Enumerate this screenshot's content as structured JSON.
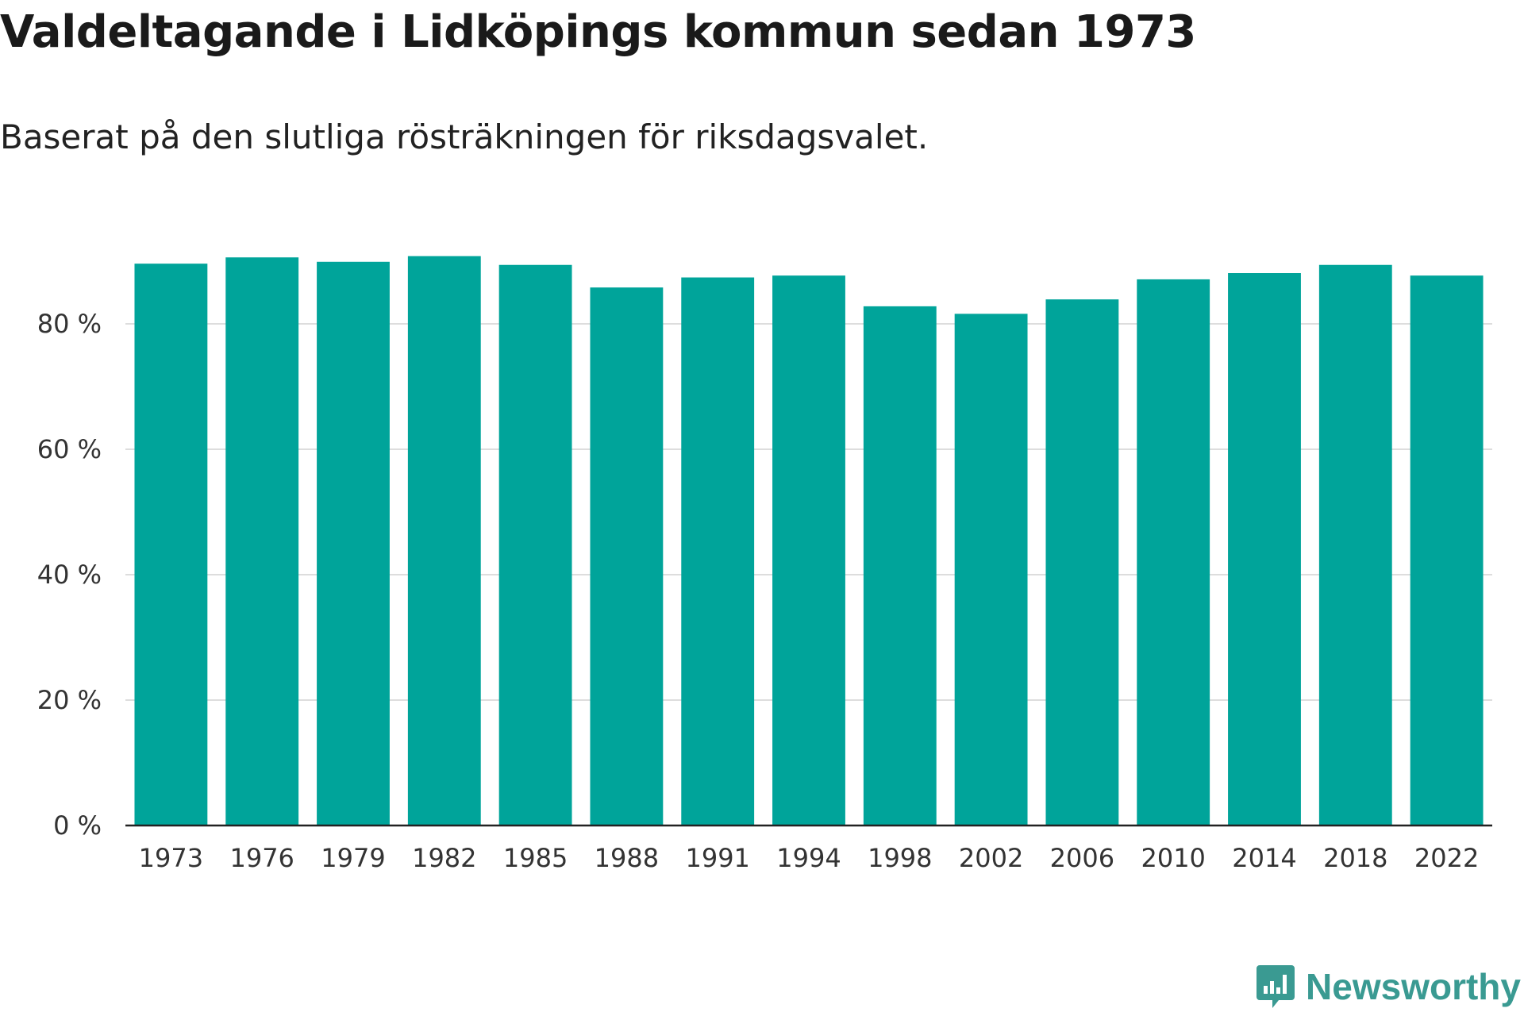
{
  "title": "Valdeltagande i Lidköpings kommun sedan 1973",
  "subtitle": "Baserat på den slutliga rösträkningen för riksdagsvalet.",
  "brand": {
    "name": "Newsworthy"
  },
  "colors": {
    "bar": "#00a49a",
    "grid": "#dddddd",
    "axis": "#222222",
    "brand": "#3a9a92"
  },
  "chart_data": {
    "type": "bar",
    "title": "Valdeltagande i Lidköpings kommun sedan 1973",
    "subtitle": "Baserat på den slutliga rösträkningen för riksdagsvalet.",
    "xlabel": "",
    "ylabel": "",
    "ylim": [
      0,
      100
    ],
    "yticks": [
      0,
      20,
      40,
      60,
      80
    ],
    "ytick_labels": [
      "0 %",
      "20 %",
      "40 %",
      "60 %",
      "80 %"
    ],
    "categories": [
      "1973",
      "1976",
      "1979",
      "1982",
      "1985",
      "1988",
      "1991",
      "1994",
      "1998",
      "2002",
      "2006",
      "2010",
      "2014",
      "2018",
      "2022"
    ],
    "values": [
      89.6,
      90.6,
      89.9,
      90.8,
      89.4,
      85.8,
      87.4,
      87.7,
      82.8,
      81.6,
      83.9,
      87.1,
      88.1,
      89.4,
      87.7
    ],
    "grid": true,
    "legend": "none"
  }
}
